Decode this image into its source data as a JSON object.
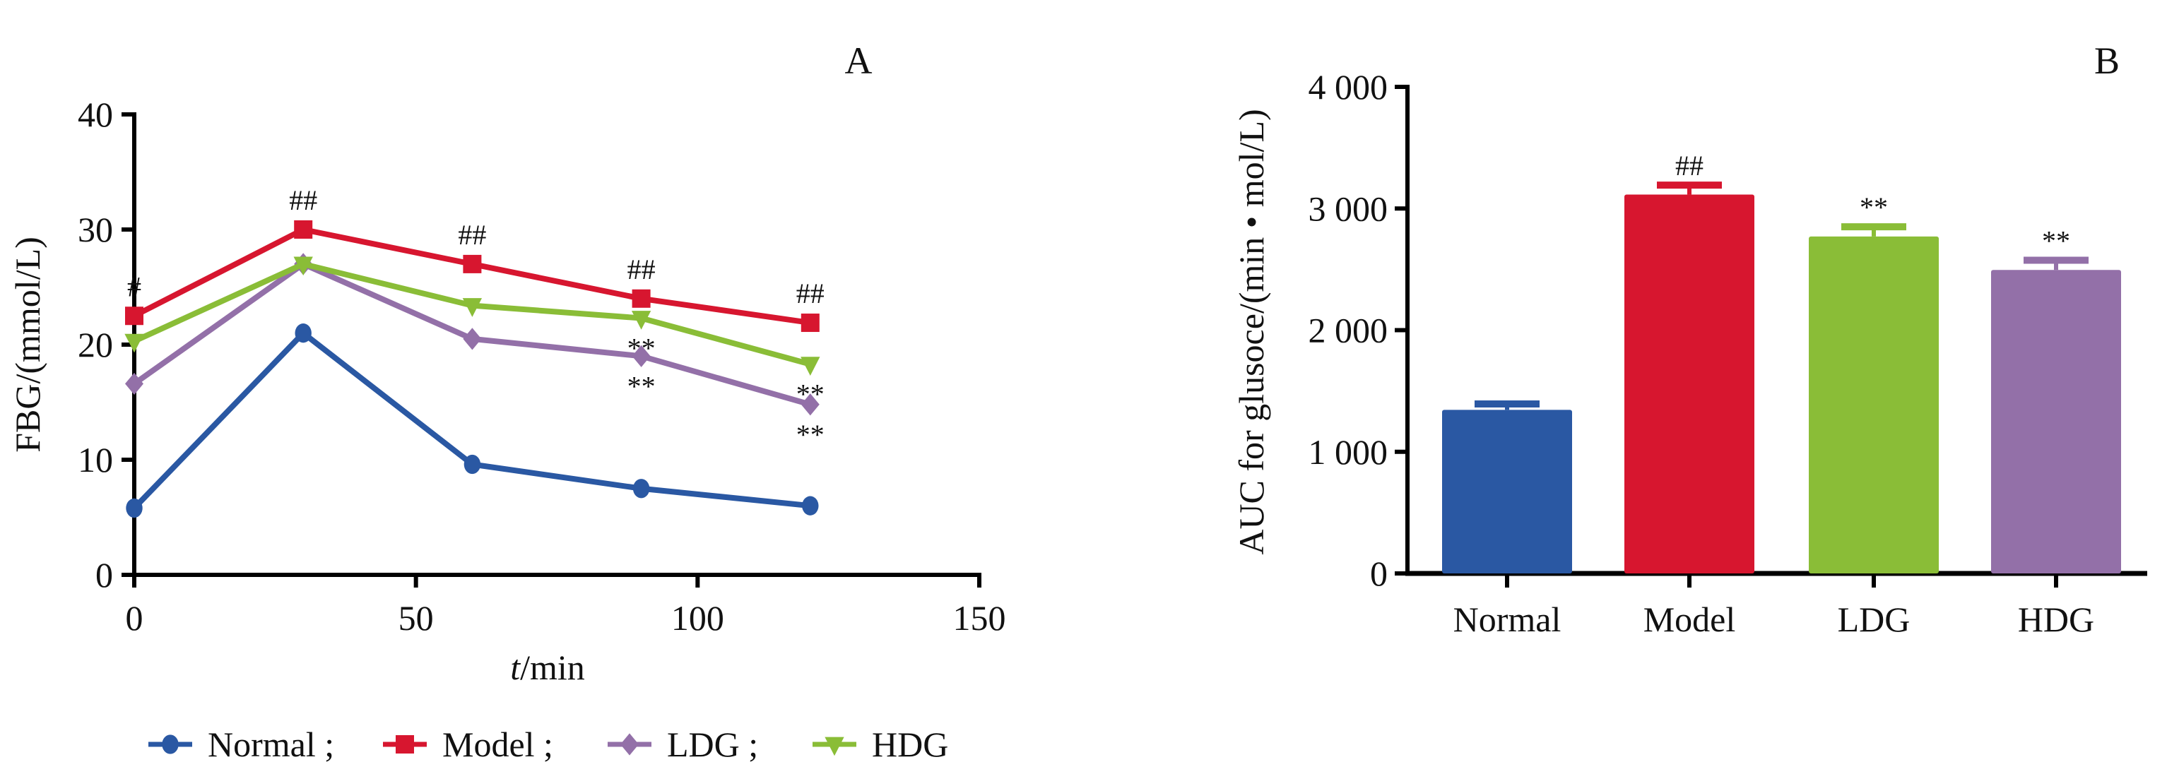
{
  "figure": {
    "panels": [
      "A",
      "B"
    ]
  },
  "chart_data": [
    {
      "panel": "A",
      "type": "line",
      "title": "",
      "xlabel_italic": "t",
      "xlabel_rest": "/min",
      "xlabel": "t/min",
      "ylabel": "FBG/(mmol/L)",
      "xlim": [
        0,
        150
      ],
      "ylim": [
        0,
        40
      ],
      "xticks": [
        0,
        50,
        100,
        150
      ],
      "yticks": [
        0,
        10,
        20,
        30,
        40
      ],
      "grid": false,
      "legend_position": "bottom",
      "x": [
        0,
        30,
        60,
        90,
        120
      ],
      "series": [
        {
          "name": "Normal",
          "legend_label": "Normal ;",
          "color": "#2A58A3",
          "marker": "circle",
          "values": [
            5.8,
            21.0,
            9.6,
            7.5,
            6.0
          ]
        },
        {
          "name": "Model",
          "legend_label": "Model ;",
          "color": "#D7162F",
          "marker": "square",
          "values": [
            22.5,
            30.0,
            27.0,
            24.0,
            21.9
          ]
        },
        {
          "name": "LDG",
          "legend_label": "LDG ;",
          "color": "#9370A8",
          "marker": "diamond",
          "values": [
            16.6,
            27.0,
            20.5,
            19.0,
            14.8
          ]
        },
        {
          "name": "HDG",
          "legend_label": "HDG",
          "color": "#8ABD37",
          "marker": "triangle-down",
          "values": [
            20.3,
            27.0,
            23.4,
            22.3,
            18.3
          ]
        }
      ],
      "annotations": [
        {
          "series": "Model",
          "x": 0,
          "text": "#",
          "position": "above"
        },
        {
          "series": "Model",
          "x": 30,
          "text": "##",
          "position": "above"
        },
        {
          "series": "Model",
          "x": 60,
          "text": "##",
          "position": "above"
        },
        {
          "series": "Model",
          "x": 90,
          "text": "##",
          "position": "above"
        },
        {
          "series": "Model",
          "x": 120,
          "text": "##",
          "position": "above"
        },
        {
          "series": "HDG",
          "x": 90,
          "text": "**",
          "position": "below"
        },
        {
          "series": "LDG",
          "x": 90,
          "text": "**",
          "position": "below"
        },
        {
          "series": "HDG",
          "x": 120,
          "text": "**",
          "position": "below"
        },
        {
          "series": "LDG",
          "x": 120,
          "text": "**",
          "position": "below"
        }
      ]
    },
    {
      "panel": "B",
      "type": "bar",
      "title": "",
      "xlabel": "",
      "ylabel": "AUC for glusoce/(min • mol/L)",
      "ylim": [
        0,
        4000
      ],
      "yticks": [
        0,
        1000,
        2000,
        3000,
        4000
      ],
      "ytick_labels": [
        "0",
        "1 000",
        "2 000",
        "3 000",
        "4 000"
      ],
      "grid": false,
      "categories": [
        "Normal",
        "Model",
        "LDG",
        "HDG"
      ],
      "values": [
        1345,
        3115,
        2770,
        2495
      ],
      "errors": [
        48,
        77,
        80,
        80
      ],
      "colors": [
        "#2A58A3",
        "#D7162F",
        "#8ABD37",
        "#9370A8"
      ],
      "annotations": [
        "",
        "##",
        "**",
        "**"
      ]
    }
  ]
}
